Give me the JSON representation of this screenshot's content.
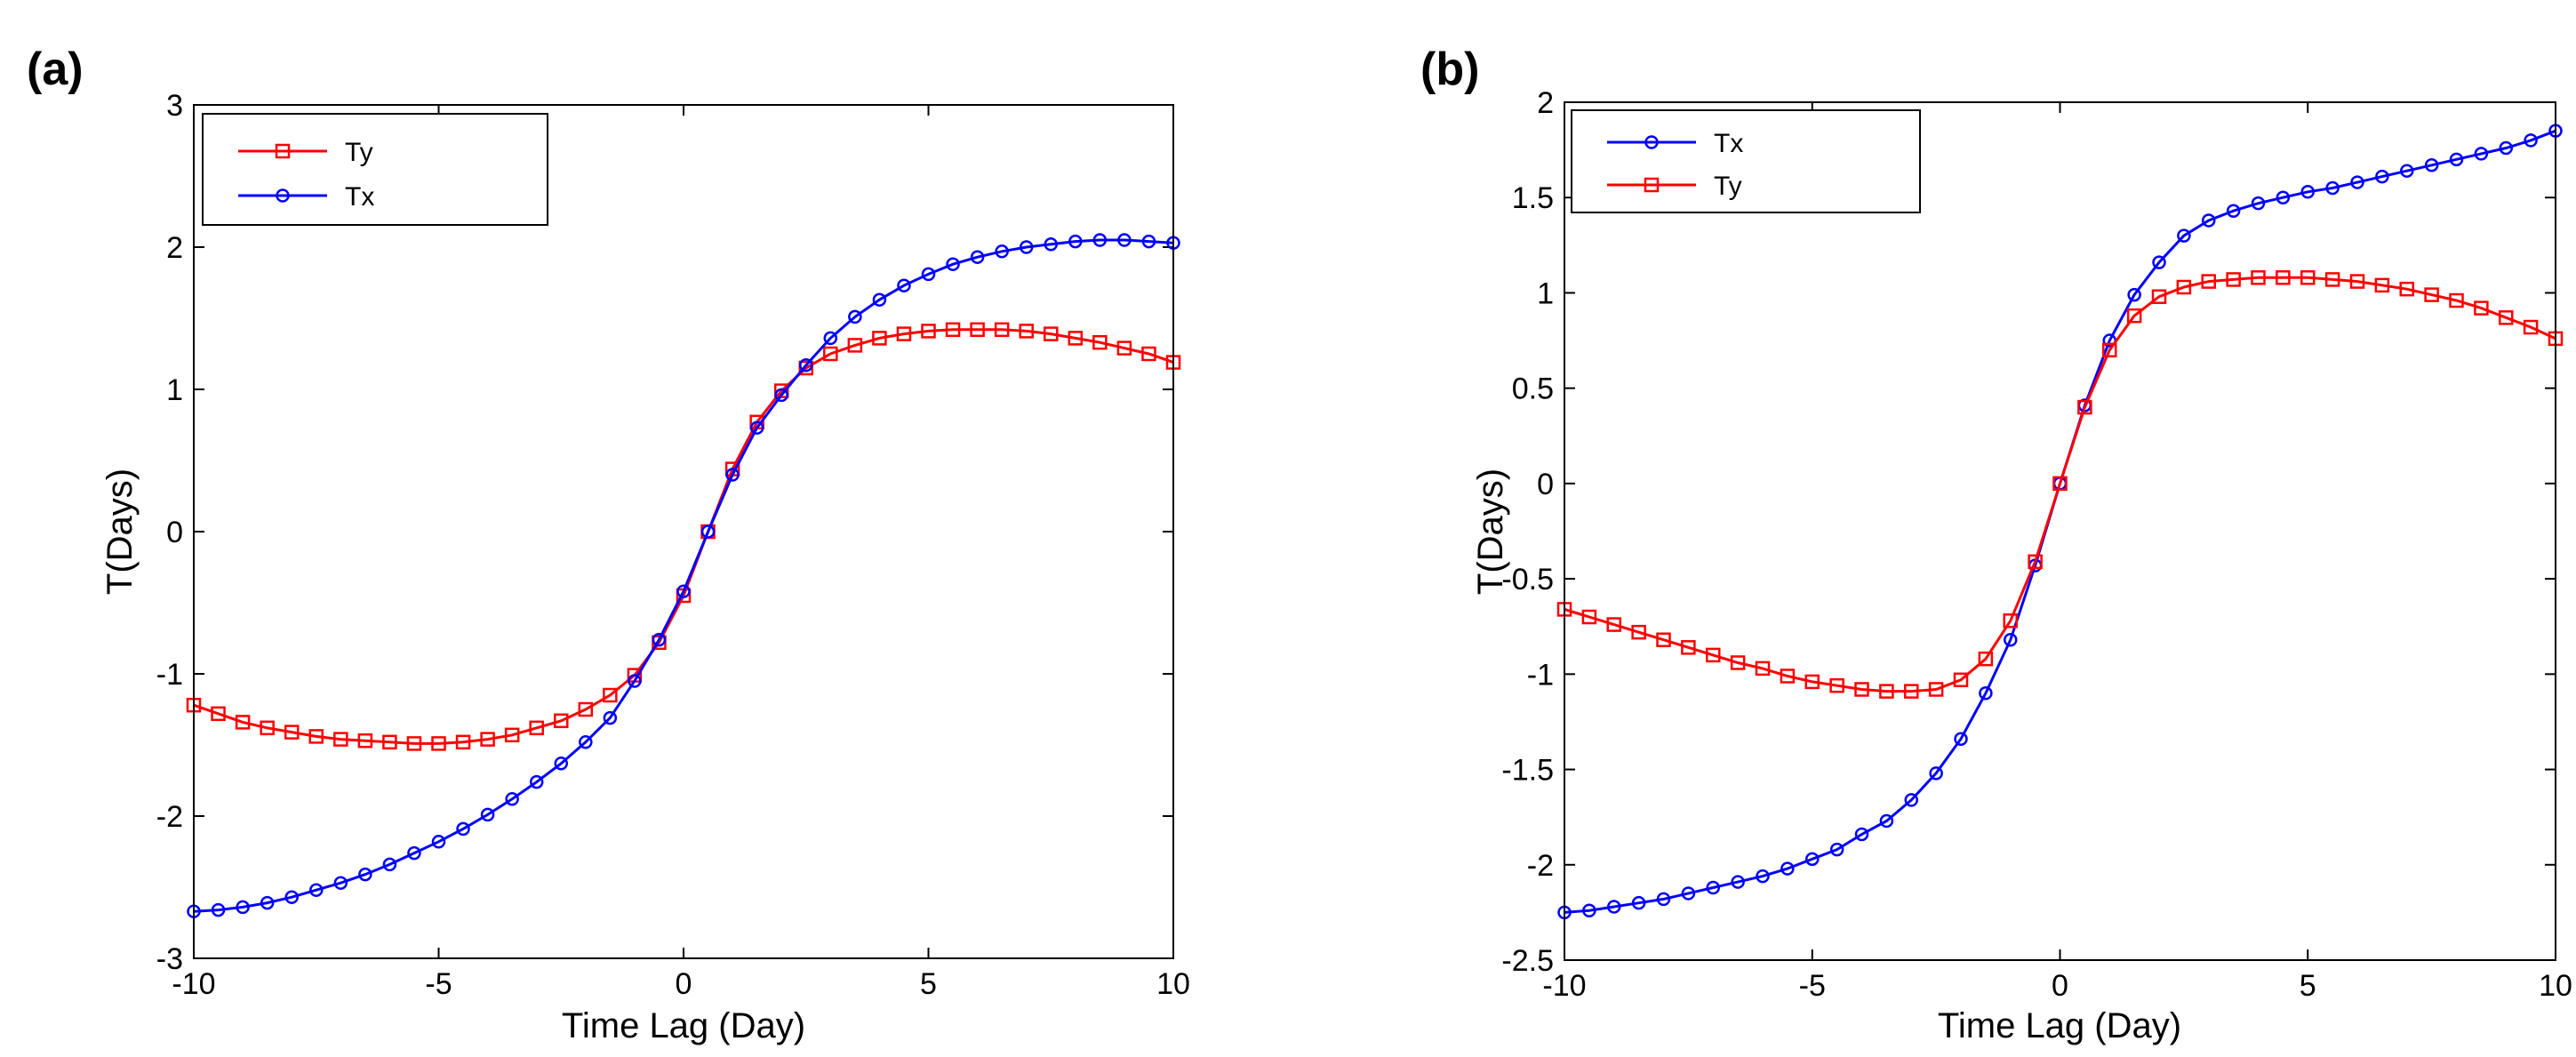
{
  "chart_data": [
    {
      "type": "line",
      "panel_label": "(a)",
      "xlabel": "Time Lag (Day)",
      "ylabel": "T(Days)",
      "xlim": [
        -10,
        10
      ],
      "ylim": [
        -3,
        3
      ],
      "xticks": [
        -10,
        -5,
        0,
        5,
        10
      ],
      "xtick_labels": [
        "-10",
        "-5",
        "0",
        "5",
        "10"
      ],
      "yticks": [
        -3,
        -2,
        -1,
        0,
        1,
        2,
        3
      ],
      "ytick_labels": [
        "-3",
        "-2",
        "-1",
        "0",
        "1",
        "2",
        "3"
      ],
      "legend_position": "top-left",
      "x": [
        -10,
        -9.5,
        -9,
        -8.5,
        -8,
        -7.5,
        -7,
        -6.5,
        -6,
        -5.5,
        -5,
        -4.5,
        -4,
        -3.5,
        -3,
        -2.5,
        -2,
        -1.5,
        -1,
        -0.5,
        0,
        0.5,
        1,
        1.5,
        2,
        2.5,
        3,
        3.5,
        4,
        4.5,
        5,
        5.5,
        6,
        6.5,
        7,
        7.5,
        8,
        8.5,
        9,
        9.5,
        10
      ],
      "series": [
        {
          "name": "Ty",
          "color": "#ff0000",
          "marker": "square",
          "values": [
            -1.22,
            -1.28,
            -1.34,
            -1.38,
            -1.41,
            -1.44,
            -1.46,
            -1.47,
            -1.48,
            -1.49,
            -1.49,
            -1.48,
            -1.46,
            -1.43,
            -1.38,
            -1.33,
            -1.25,
            -1.15,
            -1.01,
            -0.78,
            -0.45,
            0.0,
            0.44,
            0.77,
            0.99,
            1.15,
            1.25,
            1.31,
            1.36,
            1.39,
            1.41,
            1.42,
            1.42,
            1.42,
            1.41,
            1.39,
            1.36,
            1.33,
            1.29,
            1.25,
            1.19
          ]
        },
        {
          "name": "Tx",
          "color": "#0000ff",
          "marker": "circle",
          "values": [
            -2.67,
            -2.66,
            -2.64,
            -2.61,
            -2.57,
            -2.52,
            -2.47,
            -2.41,
            -2.34,
            -2.26,
            -2.18,
            -2.09,
            -1.99,
            -1.88,
            -1.76,
            -1.63,
            -1.48,
            -1.31,
            -1.05,
            -0.76,
            -0.42,
            0.0,
            0.4,
            0.73,
            0.96,
            1.17,
            1.36,
            1.51,
            1.63,
            1.73,
            1.81,
            1.88,
            1.93,
            1.97,
            2.0,
            2.02,
            2.04,
            2.05,
            2.05,
            2.04,
            2.03
          ]
        }
      ]
    },
    {
      "type": "line",
      "panel_label": "(b)",
      "xlabel": "Time Lag (Day)",
      "ylabel": "T(Days)",
      "xlim": [
        -10,
        10
      ],
      "ylim": [
        -2.5,
        2
      ],
      "xticks": [
        -10,
        -5,
        0,
        5,
        10
      ],
      "xtick_labels": [
        "-10",
        "-5",
        "0",
        "5",
        "10"
      ],
      "yticks": [
        -2.5,
        -2,
        -1.5,
        -1,
        -0.5,
        0,
        0.5,
        1,
        1.5,
        2
      ],
      "ytick_labels": [
        "-2.5",
        "-2",
        "-1.5",
        "-1",
        "-0.5",
        "0",
        "0.5",
        "1",
        "1.5",
        "2"
      ],
      "legend_position": "top-left",
      "x": [
        -10,
        -9.5,
        -9,
        -8.5,
        -8,
        -7.5,
        -7,
        -6.5,
        -6,
        -5.5,
        -5,
        -4.5,
        -4,
        -3.5,
        -3,
        -2.5,
        -2,
        -1.5,
        -1,
        -0.5,
        0,
        0.5,
        1,
        1.5,
        2,
        2.5,
        3,
        3.5,
        4,
        4.5,
        5,
        5.5,
        6,
        6.5,
        7,
        7.5,
        8,
        8.5,
        9,
        9.5,
        10
      ],
      "series": [
        {
          "name": "Tx",
          "color": "#0000ff",
          "marker": "circle",
          "values": [
            -2.25,
            -2.24,
            -2.22,
            -2.2,
            -2.18,
            -2.15,
            -2.12,
            -2.09,
            -2.06,
            -2.02,
            -1.97,
            -1.92,
            -1.84,
            -1.77,
            -1.66,
            -1.52,
            -1.34,
            -1.1,
            -0.82,
            -0.43,
            0.0,
            0.41,
            0.75,
            0.99,
            1.16,
            1.3,
            1.38,
            1.43,
            1.47,
            1.5,
            1.53,
            1.55,
            1.58,
            1.61,
            1.64,
            1.67,
            1.7,
            1.73,
            1.76,
            1.8,
            1.85
          ]
        },
        {
          "name": "Ty",
          "color": "#ff0000",
          "marker": "square",
          "values": [
            -0.66,
            -0.7,
            -0.74,
            -0.78,
            -0.82,
            -0.86,
            -0.9,
            -0.94,
            -0.97,
            -1.01,
            -1.04,
            -1.06,
            -1.08,
            -1.09,
            -1.09,
            -1.08,
            -1.03,
            -0.92,
            -0.72,
            -0.41,
            0.0,
            0.4,
            0.7,
            0.88,
            0.98,
            1.03,
            1.06,
            1.07,
            1.08,
            1.08,
            1.08,
            1.07,
            1.06,
            1.04,
            1.02,
            0.99,
            0.96,
            0.92,
            0.87,
            0.82,
            0.76
          ]
        }
      ]
    }
  ]
}
